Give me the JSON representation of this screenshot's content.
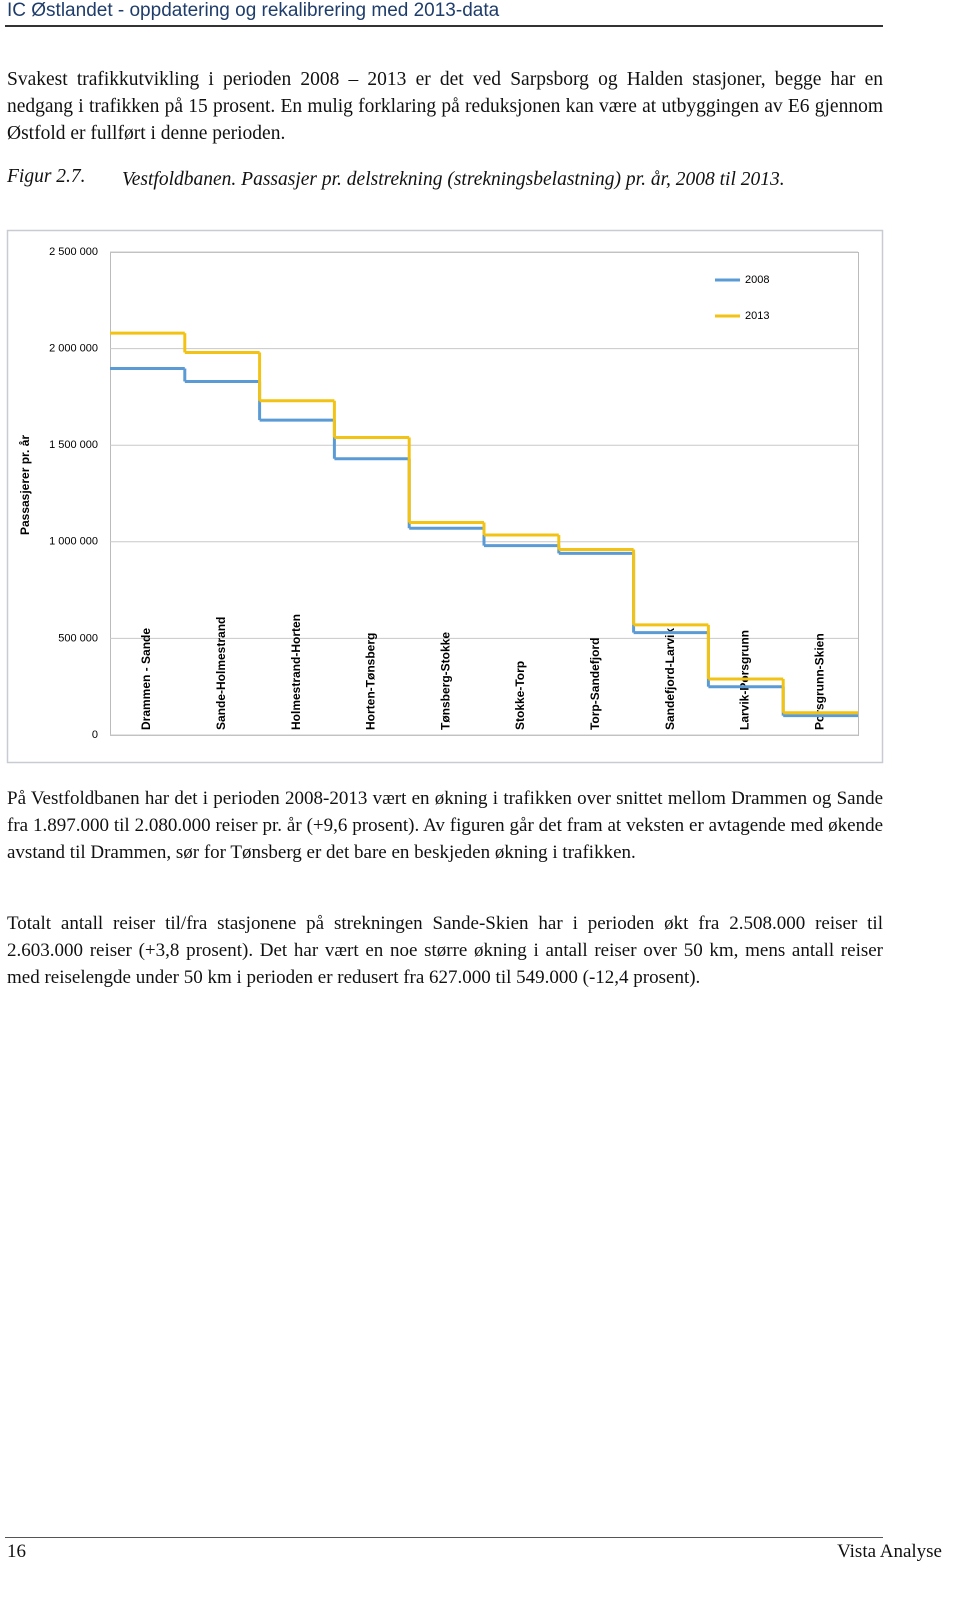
{
  "header": {
    "title": "IC Østlandet - oppdatering og rekalibrering med 2013-data"
  },
  "paragraphs": [
    "Svakest trafikkutvikling i perioden 2008 – 2013 er det ved Sarpsborg og Halden stasjoner, begge har en nedgang i trafikken på 15 prosent. En mulig forklaring på reduksjonen kan være at utbyggingen av E6 gjennom Østfold er fullført i denne perioden.",
    "På Vestfoldbanen har det i perioden 2008-2013 vært en økning i trafikken over snittet mellom Drammen og Sande fra 1.897.000 til 2.080.000 reiser pr. år (+9,6 prosent). Av figuren går det fram at veksten er avtagende med økende avstand til Drammen, sør for Tønsberg er det bare en beskjeden økning i trafikken.",
    "Totalt antall reiser til/fra stasjonene på strekningen Sande-Skien har i perioden økt fra 2.508.000 reiser til 2.603.000 reiser (+3,8 prosent). Det har vært en noe større økning i antall reiser over 50 km, mens antall reiser med reiselengde under 50 km i perioden er redusert fra 627.000 til 549.000 (-12,4 prosent)."
  ],
  "figure": {
    "number": "Figur 2.7.",
    "caption": "Vestfoldbanen. Passasjer pr. delstrekning (strekningsbelastning) pr. år, 2008 til 2013."
  },
  "chart_data": {
    "type": "line",
    "step": true,
    "y_label": "Passasjerer pr. år",
    "categories": [
      "Drammen - Sande",
      "Sande-Holmestrand",
      "Holmestrand-Horten",
      "Horten-Tønsberg",
      "Tønsberg-Stokke",
      "Stokke-Torp",
      "Torp-Sandefjord",
      "Sandefjord-Larvik",
      "Larvik-Porsgrunn",
      "Porsgrunn-Skien"
    ],
    "series": [
      {
        "name": "2008",
        "color": "#5b9bd5",
        "values": [
          1897000,
          1830000,
          1630000,
          1430000,
          1070000,
          980000,
          940000,
          530000,
          250000,
          100000
        ]
      },
      {
        "name": "2013",
        "color": "#f2c314",
        "values": [
          2080000,
          1980000,
          1730000,
          1540000,
          1100000,
          1035000,
          960000,
          570000,
          290000,
          115000
        ]
      }
    ],
    "ylim": [
      0,
      2500000
    ],
    "yticks": [
      0,
      {
        "value": 500000,
        "label": "500 000"
      },
      {
        "value": 1000000,
        "label": "1 000 000"
      },
      {
        "value": 1500000,
        "label": "1 500 000"
      },
      {
        "value": 2000000,
        "label": "2 000 000"
      },
      {
        "value": 2500000,
        "label": "2 500 000"
      }
    ],
    "grid": true,
    "legend": "top-right"
  },
  "footer": {
    "page": "16",
    "publisher": "Vista Analyse"
  }
}
